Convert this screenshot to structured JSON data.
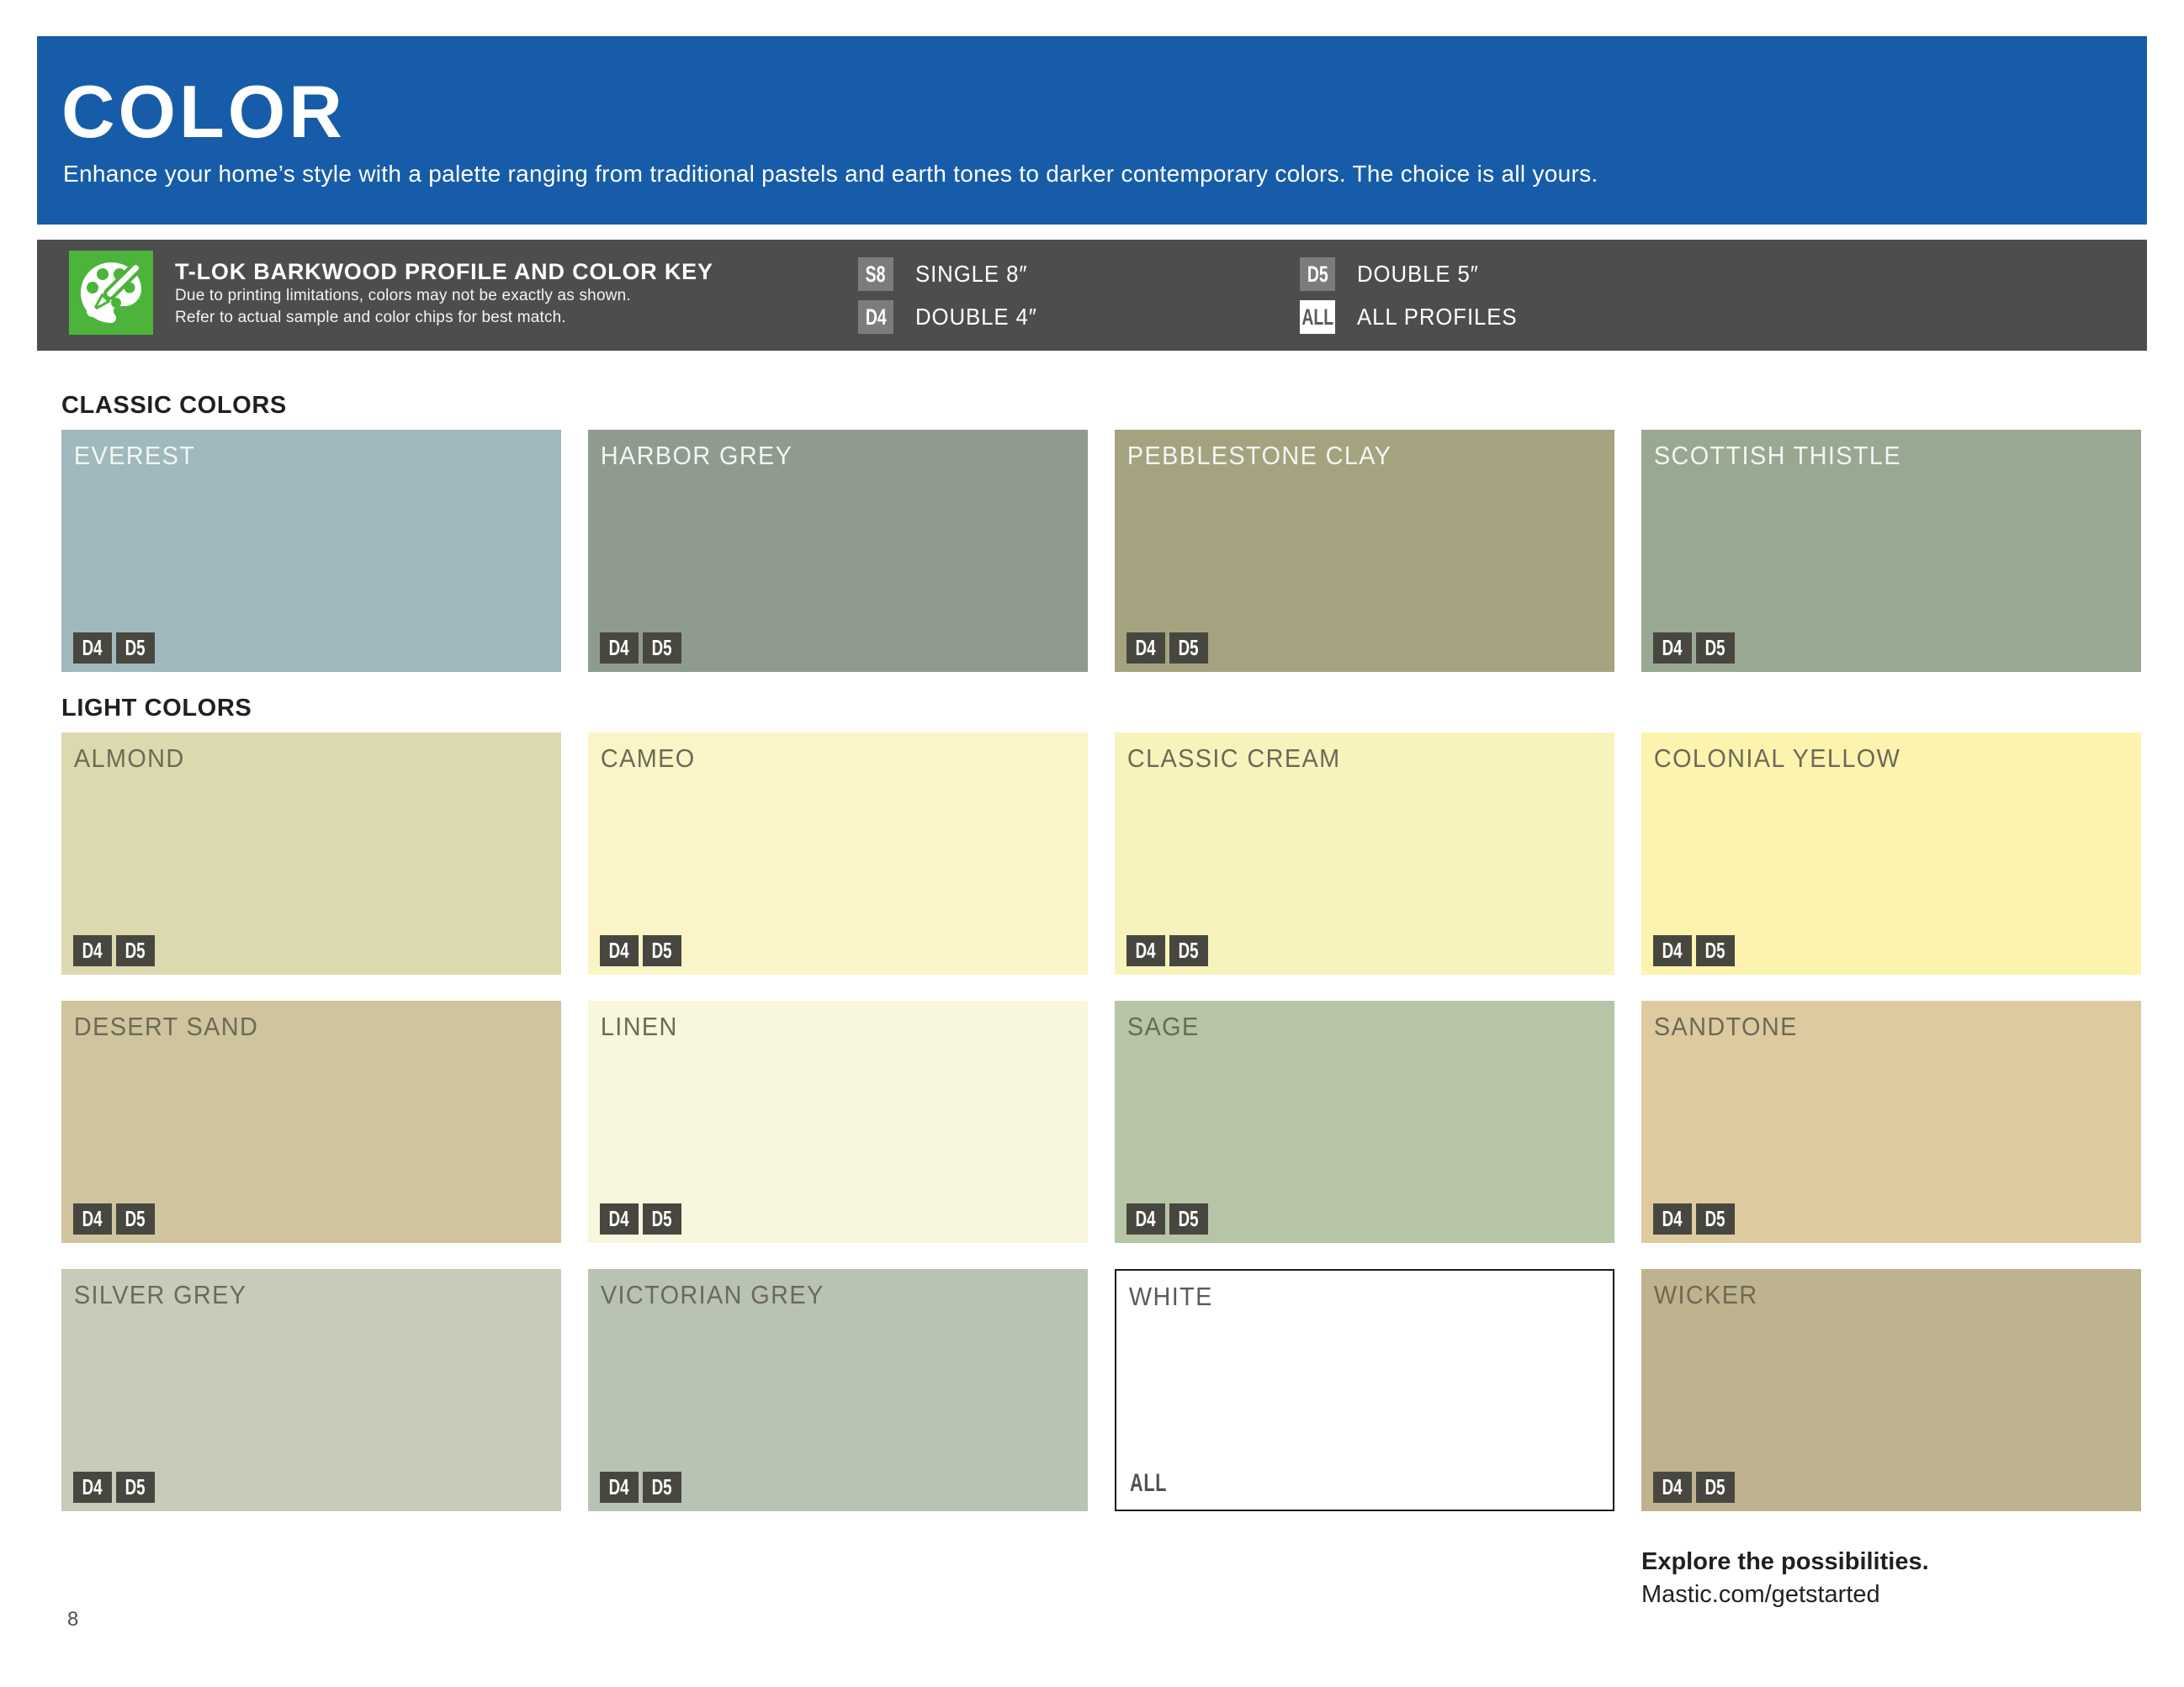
{
  "colors": {
    "header_bg": "#175CA9",
    "keybar_bg": "#4D4D4D",
    "icon_green": "#4CB43A",
    "key_badge_grey": "#7C7C7A",
    "swatch_badge_dark": "#48473F",
    "heading_ink": "#231F20",
    "label_light": "#F2F6F3",
    "label_dark": "#6B6A55"
  },
  "header": {
    "title": "COLOR",
    "subtitle": "Enhance your home’s style with a palette ranging from traditional pastels and earth tones to darker contemporary colors. The choice is all yours."
  },
  "key": {
    "title": "T-LOK BARKWOOD PROFILE AND COLOR KEY",
    "notes": [
      "Due to printing limitations, colors may not be exactly as shown.",
      "Refer to actual sample and color chips for best match."
    ],
    "icon": "palette-icon",
    "columns": [
      [
        {
          "code": "S8",
          "label": "SINGLE 8″",
          "badge": "grey"
        },
        {
          "code": "D4",
          "label": "DOUBLE 4″",
          "badge": "grey"
        }
      ],
      [
        {
          "code": "D5",
          "label": "DOUBLE 5″",
          "badge": "grey"
        },
        {
          "code": "ALL",
          "label": "ALL PROFILES",
          "badge": "white"
        }
      ]
    ]
  },
  "sections": [
    {
      "heading": "CLASSIC COLORS",
      "swatches": [
        {
          "name": "EVEREST",
          "hex": "#9FB9BE",
          "label": "light",
          "profiles": [
            "D4",
            "D5"
          ]
        },
        {
          "name": "HARBOR GREY",
          "hex": "#8F9B8E",
          "label": "light",
          "profiles": [
            "D4",
            "D5"
          ]
        },
        {
          "name": "PEBBLESTONE CLAY",
          "hex": "#A5A37F",
          "label": "light",
          "profiles": [
            "D4",
            "D5"
          ]
        },
        {
          "name": "SCOTTISH THISTLE",
          "hex": "#99A891",
          "label": "light",
          "profiles": [
            "D4",
            "D5"
          ]
        }
      ]
    },
    {
      "heading": "LIGHT COLORS",
      "swatches": [
        {
          "name": "ALMOND",
          "hex": "#DDD9AE",
          "label": "dark",
          "profiles": [
            "D4",
            "D5"
          ]
        },
        {
          "name": "CAMEO",
          "hex": "#FAF4C6",
          "label": "dark",
          "profiles": [
            "D4",
            "D5"
          ]
        },
        {
          "name": "CLASSIC CREAM",
          "hex": "#F8F3BD",
          "label": "dark",
          "profiles": [
            "D4",
            "D5"
          ]
        },
        {
          "name": "COLONIAL YELLOW",
          "hex": "#FCF3AF",
          "label": "dark",
          "profiles": [
            "D4",
            "D5"
          ]
        },
        {
          "name": "DESERT SAND",
          "hex": "#CFC49D",
          "label": "dark",
          "profiles": [
            "D4",
            "D5"
          ]
        },
        {
          "name": "LINEN",
          "hex": "#F8F6DD",
          "label": "dark",
          "profiles": [
            "D4",
            "D5"
          ]
        },
        {
          "name": "SAGE",
          "hex": "#B5C5A6",
          "label": "dark",
          "profiles": [
            "D4",
            "D5"
          ]
        },
        {
          "name": "SANDTONE",
          "hex": "#DECA9F",
          "label": "dark",
          "profiles": [
            "D4",
            "D5"
          ]
        },
        {
          "name": "SILVER GREY",
          "hex": "#C7CBB9",
          "label": "dark",
          "profiles": [
            "D4",
            "D5"
          ]
        },
        {
          "name": "VICTORIAN GREY",
          "hex": "#B9C3B3",
          "label": "dark",
          "profiles": [
            "D4",
            "D5"
          ]
        },
        {
          "name": "WHITE",
          "hex": "#FFFFFF",
          "label": "dark",
          "label_color": "#595A5C",
          "border": true,
          "profiles": [
            "ALL"
          ],
          "profiles_as_text": true
        },
        {
          "name": "WICKER",
          "hex": "#BFB38F",
          "label": "dark",
          "profiles": [
            "D4",
            "D5"
          ]
        }
      ]
    }
  ],
  "footer": {
    "cta": "Explore the possibilities.",
    "url": "Mastic.com/getstarted"
  },
  "page_number": "8"
}
